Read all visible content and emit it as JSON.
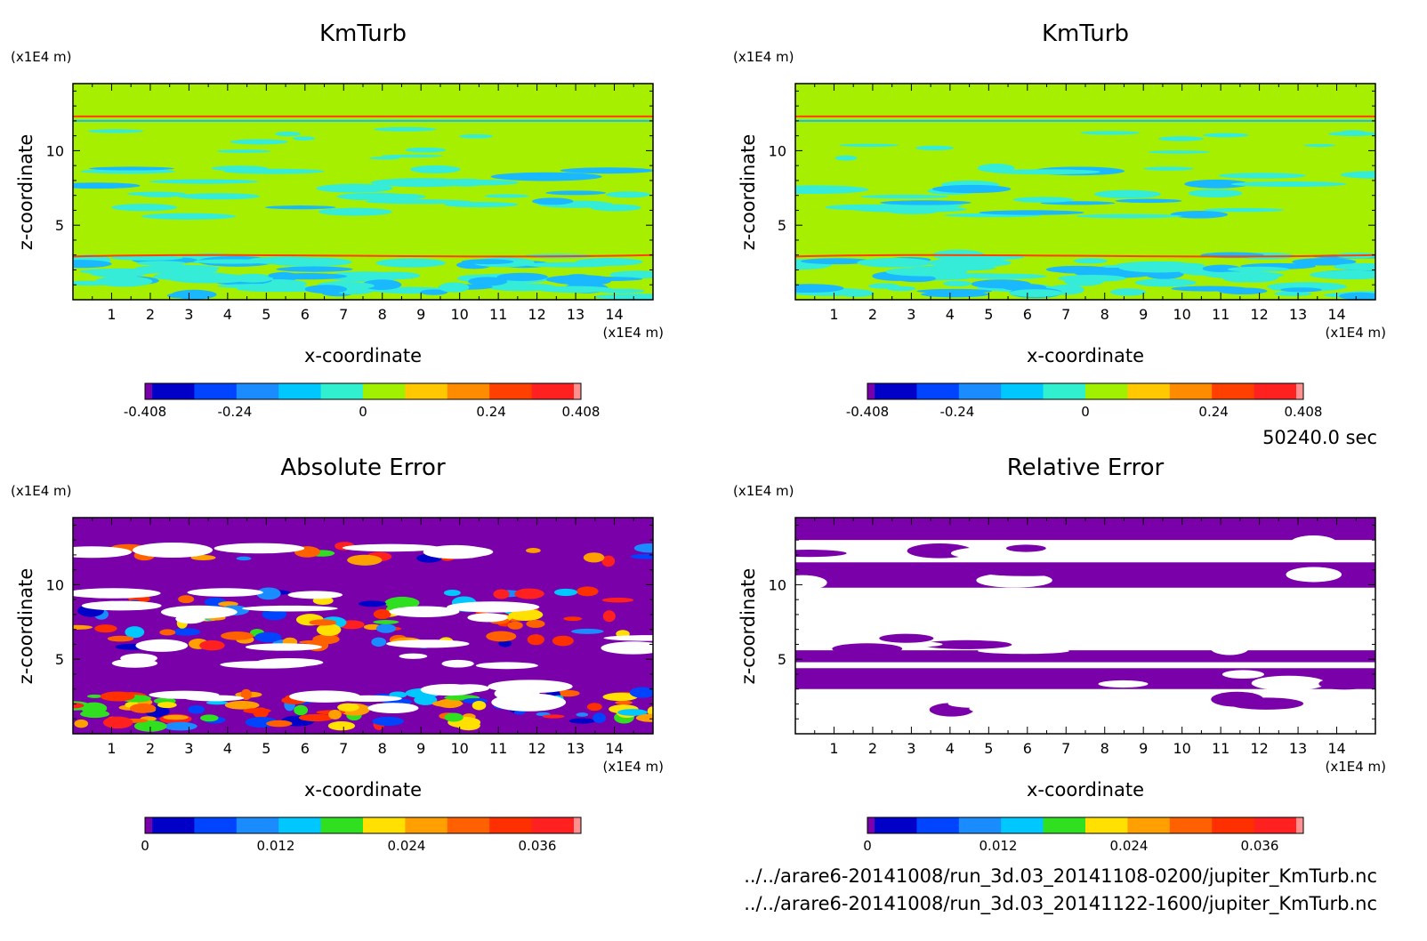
{
  "page": {
    "time_label": "50240.0 sec",
    "file_paths": [
      "../../arare6-20141008/run_3d.03_20141108-0200/jupiter_KmTurb.nc",
      "../../arare6-20141008/run_3d.03_20141122-1600/jupiter_KmTurb.nc"
    ]
  },
  "chart_data": [
    {
      "type": "heatmap",
      "title": "KmTurb",
      "xlabel": "x-coordinate",
      "ylabel": "z-coordinate",
      "x_unit": "(x1E4 m)",
      "y_unit": "(x1E4 m)",
      "xlim": [
        0,
        15
      ],
      "ylim": [
        0,
        14.5
      ],
      "x_ticks": [
        1,
        2,
        3,
        4,
        5,
        6,
        7,
        8,
        9,
        10,
        11,
        12,
        13,
        14
      ],
      "y_ticks": [
        5,
        10
      ],
      "colorbar": {
        "colors": [
          "#7a00aa",
          "#0000c8",
          "#0044ff",
          "#1a8cff",
          "#00c8ff",
          "#30f0d0",
          "#a0f000",
          "#ffc800",
          "#ff8c00",
          "#ff4000",
          "#ff2020",
          "#ff9090"
        ],
        "labels": [
          "-0.408",
          "-0.24",
          "0",
          "0.24",
          "0.408"
        ],
        "label_values": [
          -0.408,
          -0.24,
          0,
          0.24,
          0.408
        ],
        "range": [
          -0.408,
          0.408
        ]
      },
      "field": "kmturb",
      "seed": 7
    },
    {
      "type": "heatmap",
      "title": "KmTurb",
      "xlabel": "x-coordinate",
      "ylabel": "z-coordinate",
      "x_unit": "(x1E4 m)",
      "y_unit": "(x1E4 m)",
      "xlim": [
        0,
        15
      ],
      "ylim": [
        0,
        14.5
      ],
      "x_ticks": [
        1,
        2,
        3,
        4,
        5,
        6,
        7,
        8,
        9,
        10,
        11,
        12,
        13,
        14
      ],
      "y_ticks": [
        5,
        10
      ],
      "colorbar": {
        "colors": [
          "#7a00aa",
          "#0000c8",
          "#0044ff",
          "#1a8cff",
          "#00c8ff",
          "#30f0d0",
          "#a0f000",
          "#ffc800",
          "#ff8c00",
          "#ff4000",
          "#ff2020",
          "#ff9090"
        ],
        "labels": [
          "-0.408",
          "-0.24",
          "0",
          "0.24",
          "0.408"
        ],
        "label_values": [
          -0.408,
          -0.24,
          0,
          0.24,
          0.408
        ],
        "range": [
          -0.408,
          0.408
        ]
      },
      "field": "kmturb",
      "seed": 13
    },
    {
      "type": "heatmap",
      "title": "Absolute Error",
      "xlabel": "x-coordinate",
      "ylabel": "z-coordinate",
      "x_unit": "(x1E4 m)",
      "y_unit": "(x1E4 m)",
      "xlim": [
        0,
        15
      ],
      "ylim": [
        0,
        14.5
      ],
      "x_ticks": [
        1,
        2,
        3,
        4,
        5,
        6,
        7,
        8,
        9,
        10,
        11,
        12,
        13,
        14
      ],
      "y_ticks": [
        5,
        10
      ],
      "colorbar": {
        "colors": [
          "#7a00aa",
          "#0000c8",
          "#0044ff",
          "#1a8cff",
          "#00c8ff",
          "#30e020",
          "#ffe000",
          "#ffa000",
          "#ff6000",
          "#ff3000",
          "#ff2020",
          "#ff9090"
        ],
        "labels": [
          "0",
          "0.012",
          "0.024",
          "0.036"
        ],
        "label_values": [
          0,
          0.012,
          0.024,
          0.036
        ],
        "range": [
          0,
          0.04
        ]
      },
      "field": "abserr",
      "seed": 21
    },
    {
      "type": "heatmap",
      "title": "Relative Error",
      "xlabel": "x-coordinate",
      "ylabel": "z-coordinate",
      "x_unit": "(x1E4 m)",
      "y_unit": "(x1E4 m)",
      "xlim": [
        0,
        15
      ],
      "ylim": [
        0,
        14.5
      ],
      "x_ticks": [
        1,
        2,
        3,
        4,
        5,
        6,
        7,
        8,
        9,
        10,
        11,
        12,
        13,
        14
      ],
      "y_ticks": [
        5,
        10
      ],
      "colorbar": {
        "colors": [
          "#7a00aa",
          "#0000c8",
          "#0044ff",
          "#1a8cff",
          "#00c8ff",
          "#30e020",
          "#ffe000",
          "#ffa000",
          "#ff6000",
          "#ff3000",
          "#ff2020",
          "#ff9090"
        ],
        "labels": [
          "0",
          "0.012",
          "0.024",
          "0.036"
        ],
        "label_values": [
          0,
          0.012,
          0.024,
          0.036
        ],
        "range": [
          0,
          0.04
        ]
      },
      "field": "relerr",
      "seed": 33
    }
  ]
}
